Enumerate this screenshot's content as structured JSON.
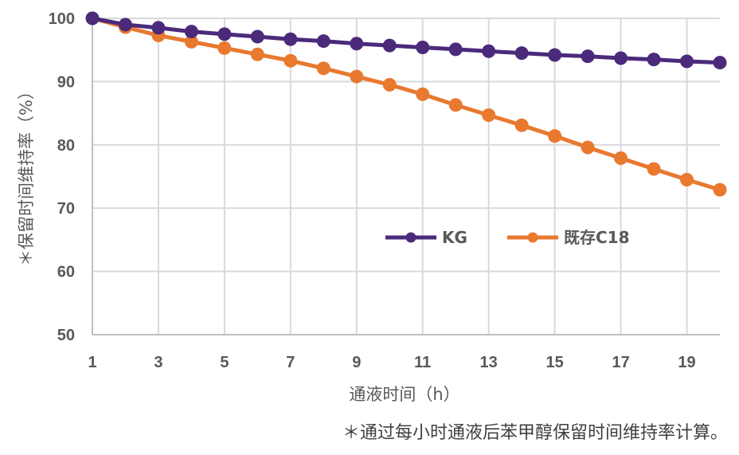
{
  "chart_data": {
    "type": "line",
    "x": [
      1,
      2,
      3,
      4,
      5,
      6,
      7,
      8,
      9,
      10,
      11,
      12,
      13,
      14,
      15,
      16,
      17,
      18,
      19,
      20
    ],
    "x_tick_labels": [
      "1",
      "3",
      "5",
      "7",
      "9",
      "11",
      "13",
      "15",
      "17",
      "19"
    ],
    "x_tick_values": [
      1,
      3,
      5,
      7,
      9,
      11,
      13,
      15,
      17,
      19
    ],
    "y_tick_labels": [
      "50",
      "60",
      "70",
      "80",
      "90",
      "100"
    ],
    "y_tick_values": [
      50,
      60,
      70,
      80,
      90,
      100
    ],
    "xlim": [
      1,
      20
    ],
    "ylim": [
      50,
      100
    ],
    "xlabel": "通液时间（h）",
    "ylabel": "＊保留时间维持率（%）",
    "grid": "vertical and horizontal",
    "legend_position": "inside, center-right",
    "footnote": "＊通过每小时通液后苯甲醇保留时间维持率计算。",
    "series": [
      {
        "name": "KG",
        "color": "#4b2a7b",
        "values": [
          100,
          99.0,
          98.5,
          97.9,
          97.5,
          97.1,
          96.7,
          96.4,
          96.0,
          95.7,
          95.4,
          95.1,
          94.8,
          94.5,
          94.2,
          94.0,
          93.7,
          93.5,
          93.2,
          93.0
        ]
      },
      {
        "name": "既存C18",
        "color": "#e8792f",
        "values": [
          100,
          98.6,
          97.3,
          96.3,
          95.3,
          94.3,
          93.3,
          92.1,
          90.8,
          89.5,
          88.0,
          86.3,
          84.7,
          83.1,
          81.4,
          79.6,
          77.9,
          76.2,
          74.5,
          72.9
        ]
      }
    ]
  }
}
